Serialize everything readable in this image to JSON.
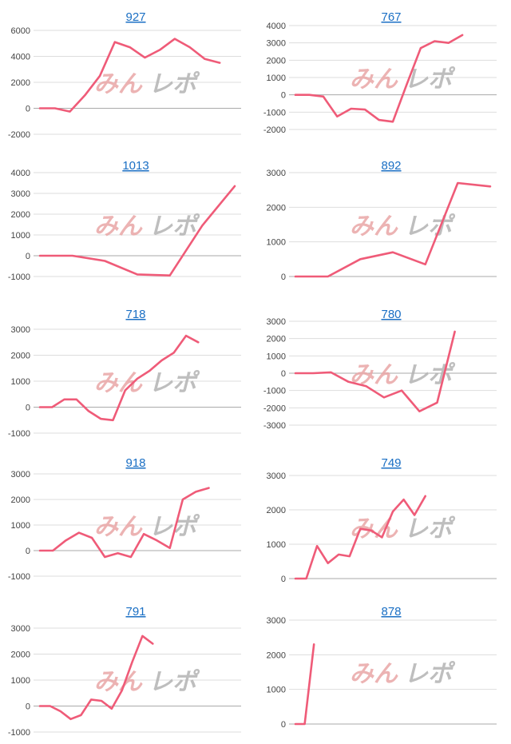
{
  "watermark": {
    "part1": "みん",
    "part2": "レポ"
  },
  "colors": {
    "line": "#ef5b78",
    "title": "#1a6fc4",
    "grid": "#dddddd"
  },
  "chart_data": [
    {
      "type": "line",
      "title": "927",
      "ylim": [
        -2000,
        6000
      ],
      "yticks": [
        "6000",
        "4000",
        "2000",
        "0",
        "-2000"
      ],
      "ytick_values": [
        6000,
        4000,
        2000,
        0,
        -2000
      ],
      "x": [
        0,
        1,
        2,
        3,
        4,
        5,
        6,
        7,
        8,
        9,
        10,
        11,
        12,
        13
      ],
      "values": [
        0,
        0,
        -250,
        1000,
        2500,
        5100,
        4700,
        3900,
        4500,
        5350,
        4700,
        3800,
        3500,
        null
      ]
    },
    {
      "type": "line",
      "title": "767",
      "ylim": [
        -2000,
        4000
      ],
      "yticks": [
        "4000",
        "3000",
        "2000",
        "1000",
        "0",
        "-1000",
        "-2000"
      ],
      "ytick_values": [
        4000,
        3000,
        2000,
        1000,
        0,
        -1000,
        -2000
      ],
      "x": [
        0,
        1,
        2,
        3,
        4,
        5,
        6,
        7,
        8,
        9,
        10,
        11,
        12,
        13,
        14
      ],
      "values": [
        0,
        0,
        -100,
        -1250,
        -800,
        -850,
        -1450,
        -1550,
        600,
        2700,
        3100,
        3000,
        3450,
        null,
        null
      ]
    },
    {
      "type": "line",
      "title": "1013",
      "ylim": [
        -1000,
        4000
      ],
      "yticks": [
        "4000",
        "3000",
        "2000",
        "1000",
        "0",
        "-1000"
      ],
      "ytick_values": [
        4000,
        3000,
        2000,
        1000,
        0,
        -1000
      ],
      "x": [
        0,
        1,
        2,
        3,
        4,
        5,
        6
      ],
      "values": [
        0,
        0,
        -250,
        -900,
        -950,
        1450,
        3350
      ]
    },
    {
      "type": "line",
      "title": "892",
      "ylim": [
        0,
        3000
      ],
      "yticks": [
        "3000",
        "2000",
        "1000",
        "0"
      ],
      "ytick_values": [
        3000,
        2000,
        1000,
        0
      ],
      "x": [
        0,
        1,
        2,
        3,
        4,
        5,
        6
      ],
      "values": [
        0,
        0,
        500,
        700,
        350,
        2700,
        2600
      ]
    },
    {
      "type": "line",
      "title": "718",
      "ylim": [
        -1000,
        3000
      ],
      "yticks": [
        "3000",
        "2000",
        "1000",
        "0",
        "-1000"
      ],
      "ytick_values": [
        3000,
        2000,
        1000,
        0,
        -1000
      ],
      "x": [
        0,
        1,
        2,
        3,
        4,
        5,
        6,
        7,
        8,
        9,
        10,
        11,
        12,
        13,
        14,
        15,
        16
      ],
      "values": [
        0,
        0,
        300,
        300,
        -150,
        -450,
        -500,
        650,
        1100,
        1400,
        1800,
        2100,
        2750,
        2500,
        null,
        null,
        null
      ]
    },
    {
      "type": "line",
      "title": "780",
      "ylim": [
        -3000,
        3000
      ],
      "yticks": [
        "3000",
        "2000",
        "1000",
        "0",
        "-1000",
        "-2000",
        "-3000"
      ],
      "ytick_values": [
        3000,
        2000,
        1000,
        0,
        -1000,
        -2000,
        -3000
      ],
      "x": [
        0,
        1,
        2,
        3,
        4,
        5,
        6,
        7,
        8,
        9,
        10,
        11
      ],
      "values": [
        0,
        0,
        50,
        -500,
        -750,
        -1400,
        -1000,
        -2200,
        -1700,
        2400,
        null,
        null
      ]
    },
    {
      "type": "line",
      "title": "918",
      "ylim": [
        -1000,
        3000
      ],
      "yticks": [
        "3000",
        "2000",
        "1000",
        "0",
        "-1000"
      ],
      "ytick_values": [
        3000,
        2000,
        1000,
        0,
        -1000
      ],
      "x": [
        0,
        1,
        2,
        3,
        4,
        5,
        6,
        7,
        8,
        9,
        10,
        11,
        12,
        13,
        14,
        15
      ],
      "values": [
        0,
        0,
        400,
        700,
        500,
        -250,
        -100,
        -250,
        650,
        400,
        100,
        2000,
        2300,
        2450,
        null,
        null
      ]
    },
    {
      "type": "line",
      "title": "749",
      "ylim": [
        0,
        3000
      ],
      "yticks": [
        "3000",
        "2000",
        "1000",
        "0"
      ],
      "ytick_values": [
        3000,
        2000,
        1000,
        0
      ],
      "x": [
        0,
        1,
        2,
        3,
        4,
        5,
        6,
        7,
        8,
        9,
        10,
        11,
        12,
        13,
        14,
        15,
        16,
        17,
        18
      ],
      "values": [
        0,
        0,
        950,
        450,
        700,
        650,
        1450,
        1400,
        1200,
        1950,
        2300,
        1850,
        2400,
        null,
        null,
        null,
        null,
        null,
        null
      ]
    },
    {
      "type": "line",
      "title": "791",
      "ylim": [
        -1000,
        3000
      ],
      "yticks": [
        "3000",
        "2000",
        "1000",
        "0",
        "-1000"
      ],
      "ytick_values": [
        3000,
        2000,
        1000,
        0,
        -1000
      ],
      "x": [
        0,
        1,
        2,
        3,
        4,
        5,
        6,
        7,
        8,
        9,
        10,
        11,
        12,
        13,
        14,
        15,
        16,
        17,
        18,
        19
      ],
      "values": [
        0,
        0,
        -200,
        -500,
        -350,
        250,
        200,
        -100,
        600,
        1700,
        2700,
        2400,
        null,
        null,
        null,
        null,
        null,
        null,
        null,
        null
      ]
    },
    {
      "type": "line",
      "title": "878",
      "ylim": [
        0,
        3000
      ],
      "yticks": [
        "3000",
        "2000",
        "1000",
        "0"
      ],
      "ytick_values": [
        3000,
        2000,
        1000,
        0
      ],
      "x": [
        0,
        1,
        2,
        3,
        4,
        5,
        6,
        7,
        8,
        9,
        10,
        11,
        12,
        13,
        14,
        15,
        16,
        17,
        18,
        19,
        20,
        21
      ],
      "values": [
        0,
        0,
        2300,
        null,
        null,
        null,
        null,
        null,
        null,
        null,
        null,
        null,
        null,
        null,
        null,
        null,
        null,
        null,
        null,
        null,
        null,
        null
      ]
    }
  ]
}
